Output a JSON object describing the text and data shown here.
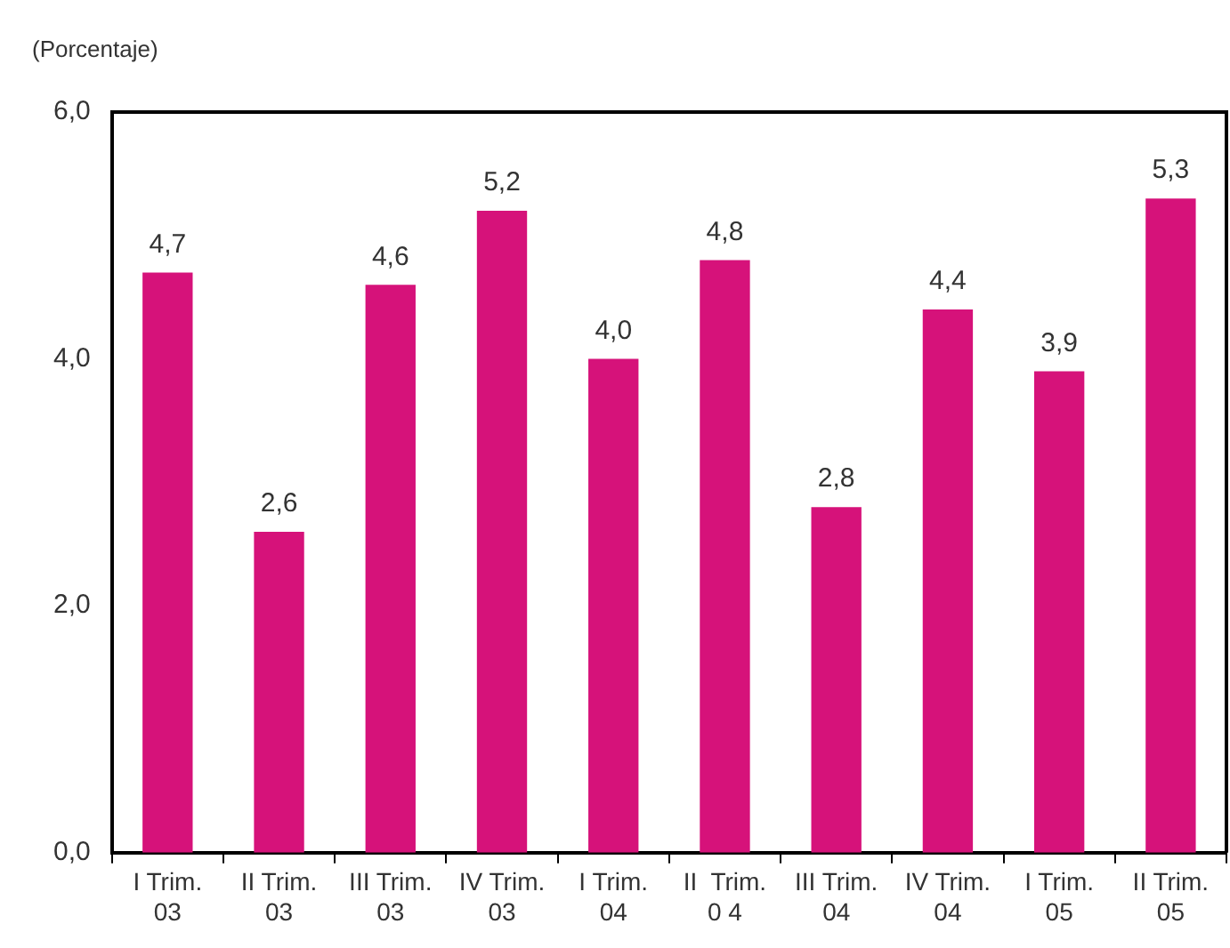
{
  "chart_data": {
    "type": "bar",
    "ylabel": "(Porcentaje)",
    "categories": [
      "I Trim.\n03",
      "II Trim.\n03",
      "III Trim.\n03",
      "IV Trim.\n03",
      "I Trim.\n04",
      "II  Trim.\n0 4",
      "III Trim.\n04",
      "IV Trim.\n04",
      "I Trim.\n05",
      "II Trim.\n05"
    ],
    "values": [
      4.7,
      2.6,
      4.6,
      5.2,
      4.0,
      4.8,
      2.8,
      4.4,
      3.9,
      5.3
    ],
    "value_labels": [
      "4,7",
      "2,6",
      "4,6",
      "5,2",
      "4,0",
      "4,8",
      "2,8",
      "4,4",
      "3,9",
      "5,3"
    ],
    "color": "#d6127a",
    "ylim": [
      0,
      6
    ],
    "yticks": [
      {
        "value": 0,
        "label": "0,0"
      },
      {
        "value": 2,
        "label": "2,0"
      },
      {
        "value": 4,
        "label": "4,0"
      },
      {
        "value": 6,
        "label": "6,0"
      }
    ],
    "grid": false,
    "legend": false
  }
}
